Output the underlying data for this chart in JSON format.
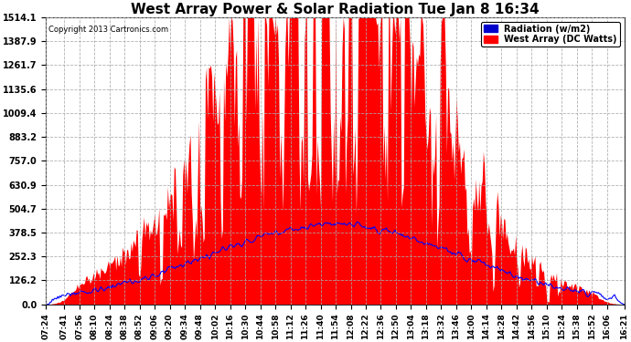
{
  "title": "West Array Power & Solar Radiation Tue Jan 8 16:34",
  "copyright": "Copyright 2013 Cartronics.com",
  "legend_radiation": "Radiation (w/m2)",
  "legend_west": "West Array (DC Watts)",
  "y_ticks": [
    0.0,
    126.2,
    252.3,
    378.5,
    504.7,
    630.9,
    757.0,
    883.2,
    1009.4,
    1135.6,
    1261.7,
    1387.9,
    1514.1
  ],
  "x_labels": [
    "07:24",
    "07:41",
    "07:56",
    "08:10",
    "08:24",
    "08:38",
    "08:52",
    "09:06",
    "09:20",
    "09:34",
    "09:48",
    "10:02",
    "10:16",
    "10:30",
    "10:44",
    "10:58",
    "11:12",
    "11:26",
    "11:40",
    "11:54",
    "12:08",
    "12:22",
    "12:36",
    "12:50",
    "13:04",
    "13:18",
    "13:32",
    "13:46",
    "14:00",
    "14:14",
    "14:28",
    "14:42",
    "14:56",
    "15:10",
    "15:24",
    "15:38",
    "15:52",
    "16:06",
    "16:21"
  ],
  "x_tick_indices": [
    0,
    17,
    31,
    45,
    59,
    73,
    87,
    101,
    115,
    129,
    143,
    157,
    171,
    185,
    199,
    213,
    227,
    241,
    255,
    269,
    283,
    297,
    311,
    325,
    339,
    353,
    367,
    381,
    395,
    409,
    423,
    437,
    451,
    465,
    479,
    493,
    507,
    521,
    537
  ],
  "bg_color": "#ffffff",
  "grid_color": "#aaaaaa",
  "bar_color": "#ff0000",
  "line_color": "#0000ff",
  "radiation_color": "#0000cc",
  "west_color": "#ff0000"
}
